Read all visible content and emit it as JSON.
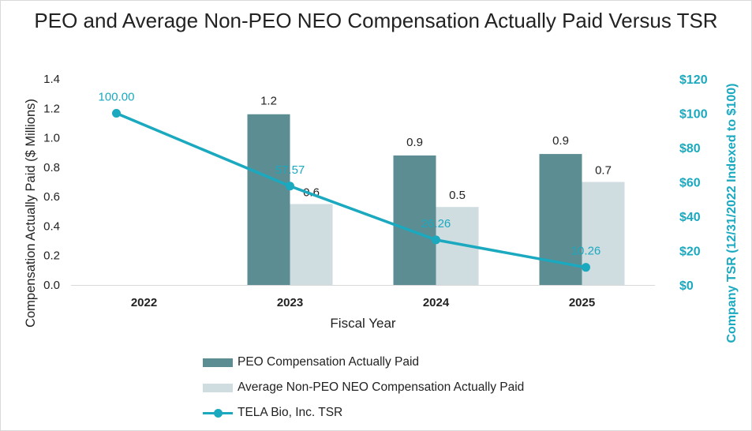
{
  "chart_data": {
    "type": "bar",
    "title": "PEO and Average Non-PEO NEO Compensation Actually Paid Versus TSR",
    "categories": [
      "2022",
      "2023",
      "2024",
      "2025"
    ],
    "xlabel": "Fiscal Year",
    "ylabel": "Compensation Actually Paid ($ Millions)",
    "y2label": "Company TSR (12/31/2022 Indexed to $100)",
    "ylim": [
      0,
      1.4
    ],
    "y2lim": [
      0,
      120
    ],
    "yticks": [
      "0.0",
      "0.2",
      "0.4",
      "0.6",
      "0.8",
      "1.0",
      "1.2",
      "1.4"
    ],
    "y2ticks": [
      "$0",
      "$20",
      "$40",
      "$60",
      "$80",
      "$100",
      "$120"
    ],
    "grid": false,
    "legend_position": "bottom",
    "series": [
      {
        "name": "PEO Compensation Actually Paid",
        "type": "bar",
        "axis": "left",
        "color": "#5b8d93",
        "values": [
          null,
          1.16,
          0.88,
          0.89
        ],
        "labels": [
          "",
          "1.2",
          "0.9",
          "0.9"
        ]
      },
      {
        "name": "Average Non-PEO NEO Compensation Actually Paid",
        "type": "bar",
        "axis": "left",
        "color": "#d0dde0",
        "values": [
          null,
          0.55,
          0.53,
          0.7
        ],
        "labels": [
          "",
          "0.6",
          "0.5",
          "0.7"
        ]
      },
      {
        "name": "TELA Bio, Inc. TSR",
        "type": "line",
        "axis": "right",
        "color": "#1aa9bf",
        "values": [
          100.0,
          57.57,
          26.26,
          10.26
        ],
        "labels": [
          "100.00",
          "57.57",
          "26.26",
          "10.26"
        ]
      }
    ]
  }
}
